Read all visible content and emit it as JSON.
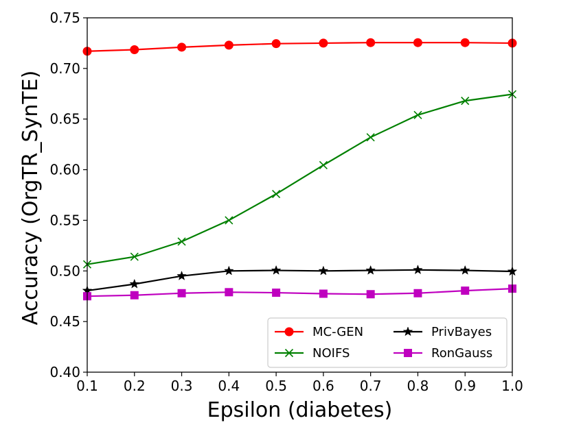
{
  "chart_data": {
    "type": "line",
    "title": "",
    "xlabel": "Epsilon (diabetes)",
    "ylabel": "Accuracy (OrgTR_SynTE)",
    "x": [
      0.1,
      0.2,
      0.3,
      0.4,
      0.5,
      0.6,
      0.7,
      0.8,
      0.9,
      1.0
    ],
    "xlim": [
      0.1,
      1.0
    ],
    "ylim": [
      0.4,
      0.75
    ],
    "xticks": [
      "0.1",
      "0.2",
      "0.3",
      "0.4",
      "0.5",
      "0.6",
      "0.7",
      "0.8",
      "0.9",
      "1.0"
    ],
    "yticks": [
      "0.40",
      "0.45",
      "0.50",
      "0.55",
      "0.60",
      "0.65",
      "0.70",
      "0.75"
    ],
    "grid": false,
    "legend_position": "lower-right",
    "series": [
      {
        "name": "MC-GEN",
        "color": "#ff0000",
        "marker": "circle",
        "values": [
          0.717,
          0.7185,
          0.721,
          0.723,
          0.7245,
          0.725,
          0.7255,
          0.7255,
          0.7255,
          0.725
        ]
      },
      {
        "name": "NOIFS",
        "color": "#008000",
        "marker": "x",
        "values": [
          0.5065,
          0.514,
          0.529,
          0.55,
          0.576,
          0.6045,
          0.632,
          0.654,
          0.668,
          0.6745
        ]
      },
      {
        "name": "PrivBayes",
        "color": "#000000",
        "marker": "star",
        "values": [
          0.4805,
          0.487,
          0.495,
          0.5,
          0.5005,
          0.5,
          0.5005,
          0.501,
          0.5005,
          0.4995
        ]
      },
      {
        "name": "RonGauss",
        "color": "#bf00bf",
        "marker": "square",
        "values": [
          0.475,
          0.476,
          0.478,
          0.479,
          0.4785,
          0.4775,
          0.477,
          0.478,
          0.4805,
          0.4825
        ]
      }
    ]
  }
}
